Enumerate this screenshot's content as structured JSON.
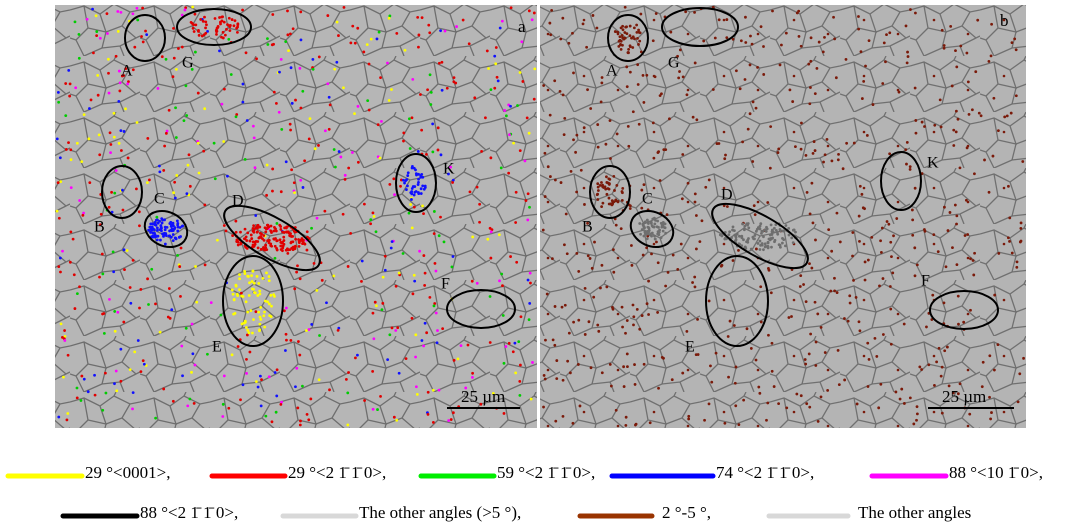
{
  "panels": [
    {
      "label": "a",
      "markers": [
        "A",
        "G",
        "B",
        "C",
        "D",
        "K",
        "E",
        "F"
      ],
      "scale_bar": "25 µm"
    },
    {
      "label": "b",
      "markers": [
        "A",
        "G",
        "B",
        "C",
        "D",
        "K",
        "E",
        "F"
      ],
      "scale_bar": "25 µm"
    }
  ],
  "legend": [
    [
      {
        "text": "29 °<0001>,",
        "color": "#ffff00"
      },
      {
        "text": "29 °<2 1̄ 1̄ 0>,",
        "color": "#ff0000"
      },
      {
        "text": "59 °<2 1̄ 1̄ 0>,",
        "color": "#00ee00"
      },
      {
        "text": "74 °<2 1̄ 1̄ 0>,",
        "color": "#0000ff"
      },
      {
        "text": "88 °<10 1̄ 0>,",
        "color": "#ff00ff"
      }
    ],
    [
      {
        "text": "88 °<2 1̄ 1̄ 0>,",
        "color": "#000000"
      },
      {
        "text": "The other angles (>5 °),",
        "color": "#d8d8d8"
      },
      {
        "text": "2 °-5 °,",
        "color": "#993300"
      },
      {
        "text": "The other angles",
        "color": "#d8d8d8"
      }
    ]
  ]
}
